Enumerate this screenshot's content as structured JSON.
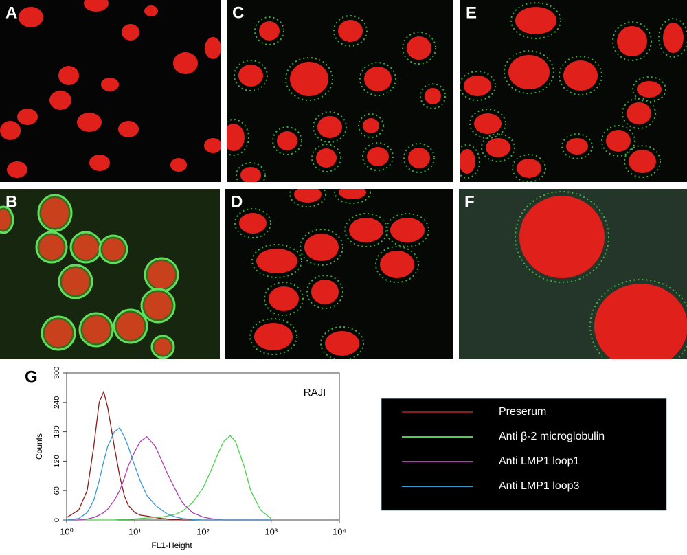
{
  "panels": [
    {
      "label": "A"
    },
    {
      "label": "B"
    },
    {
      "label": "C"
    },
    {
      "label": "D"
    },
    {
      "label": "E"
    },
    {
      "label": "F"
    },
    {
      "label": "G"
    }
  ],
  "chart_data": {
    "type": "line",
    "annotation": "RAJI",
    "x_label": "FL1-Height",
    "y_label": "Counts",
    "xscale": "log",
    "x": [
      1,
      1.5,
      2,
      2.5,
      3,
      3.5,
      4,
      5,
      6,
      7,
      8,
      10,
      12,
      15,
      20,
      25,
      30,
      40,
      50,
      70,
      100,
      130,
      160,
      200,
      250,
      300,
      400,
      500,
      700,
      1000
    ],
    "series": [
      {
        "name": "Preserum",
        "color": "#8b1a1a",
        "values": [
          5,
          20,
          60,
          150,
          240,
          262,
          230,
          150,
          90,
          50,
          30,
          15,
          10,
          8,
          5,
          3,
          2,
          1,
          0,
          0,
          0,
          0,
          0,
          0,
          0,
          0,
          0,
          0,
          0,
          0
        ]
      },
      {
        "name": "Anti β-2 microglobulin",
        "color": "#4cd24c",
        "values": [
          0,
          0,
          0,
          0,
          0,
          0,
          0,
          0,
          1,
          1,
          1,
          2,
          3,
          4,
          5,
          6,
          8,
          12,
          18,
          35,
          65,
          100,
          130,
          160,
          172,
          160,
          110,
          60,
          20,
          3
        ]
      },
      {
        "name": "Anti LMP1 loop1",
        "color": "#b040b0",
        "values": [
          0,
          0,
          2,
          5,
          10,
          15,
          22,
          40,
          60,
          85,
          110,
          140,
          160,
          170,
          150,
          120,
          95,
          60,
          35,
          15,
          6,
          3,
          1,
          0,
          0,
          0,
          0,
          0,
          0,
          0
        ]
      },
      {
        "name": "Anti LMP1 loop3",
        "color": "#3a9bd0",
        "values": [
          0,
          3,
          15,
          40,
          80,
          120,
          150,
          180,
          188,
          170,
          150,
          110,
          80,
          50,
          30,
          20,
          12,
          6,
          3,
          1,
          0,
          0,
          0,
          0,
          0,
          0,
          0,
          0,
          0,
          0
        ]
      }
    ],
    "xlim": [
      1,
      10000
    ],
    "xticks": [
      {
        "value": 1,
        "label": "10⁰"
      },
      {
        "value": 10,
        "label": "10¹"
      },
      {
        "value": 100,
        "label": "10²"
      },
      {
        "value": 1000,
        "label": "10³"
      },
      {
        "value": 10000,
        "label": "10⁴"
      }
    ],
    "ylim": [
      0,
      300
    ],
    "yticks": [
      0,
      60,
      120,
      180,
      240,
      300
    ]
  }
}
